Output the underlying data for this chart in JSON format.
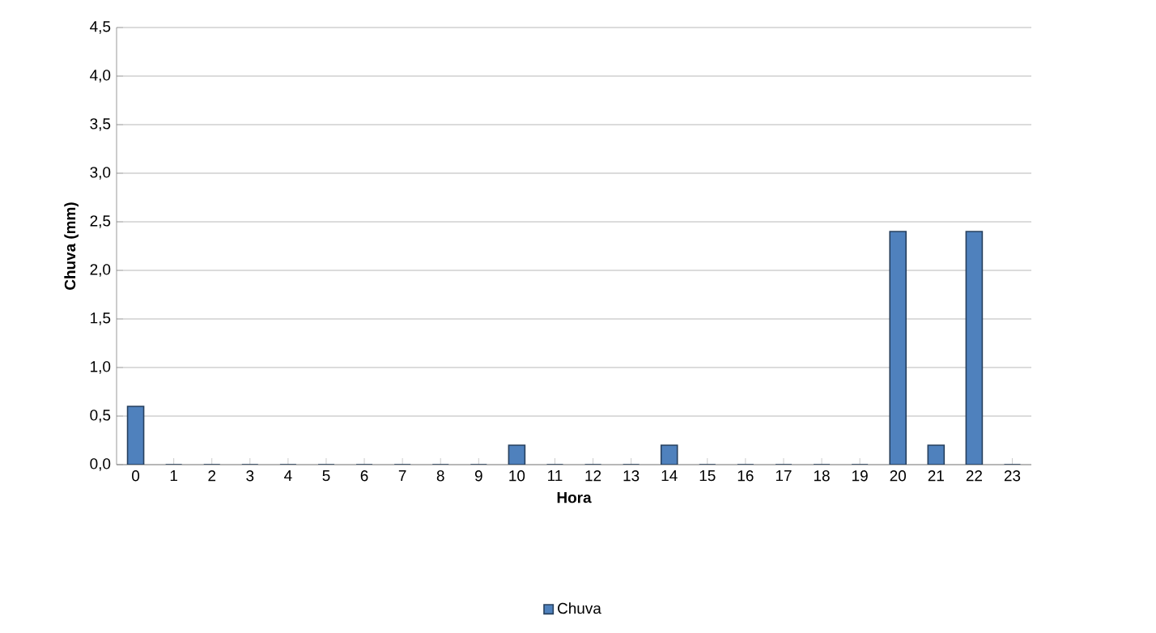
{
  "chart_data": {
    "type": "bar",
    "xlabel": "Hora",
    "ylabel": "Chuva (mm)",
    "categories": [
      "0",
      "1",
      "2",
      "3",
      "4",
      "5",
      "6",
      "7",
      "8",
      "9",
      "10",
      "11",
      "12",
      "13",
      "14",
      "15",
      "16",
      "17",
      "18",
      "19",
      "20",
      "21",
      "22",
      "23"
    ],
    "series": [
      {
        "name": "Chuva",
        "color": "#4f81bd",
        "values": [
          0.6,
          0,
          0,
          0,
          0,
          0,
          0,
          0,
          0,
          0,
          0.2,
          0,
          0,
          0,
          0.2,
          0,
          0,
          0,
          0,
          0,
          2.4,
          0.2,
          2.4,
          0
        ]
      }
    ],
    "ylim": [
      0,
      4.5
    ],
    "yticks": [
      {
        "value": 0,
        "label": "0,0"
      },
      {
        "value": 0.5,
        "label": "0,5"
      },
      {
        "value": 1,
        "label": "1,0"
      },
      {
        "value": 1.5,
        "label": "1,5"
      },
      {
        "value": 2,
        "label": "2,0"
      },
      {
        "value": 2.5,
        "label": "2,5"
      },
      {
        "value": 3,
        "label": "3,0"
      },
      {
        "value": 3.5,
        "label": "3,5"
      },
      {
        "value": 4,
        "label": "4,0"
      },
      {
        "value": 4.5,
        "label": "4,5"
      }
    ],
    "grid": "y",
    "legend": "bottom"
  }
}
